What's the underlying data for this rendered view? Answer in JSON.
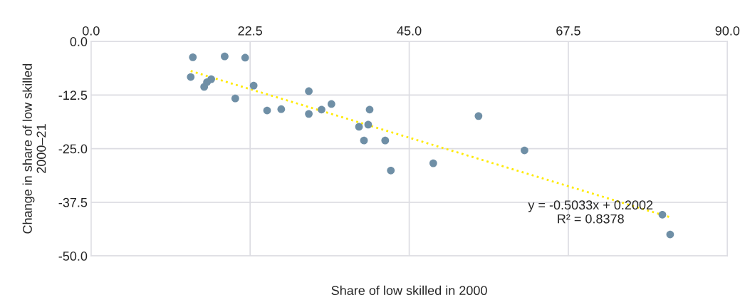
{
  "chart_data": {
    "type": "scatter",
    "xlabel": "Share of low skilled in 2000",
    "ylabel": "Change in share of low skilled\n2000–21",
    "series": [
      {
        "color": "#6f8fa6",
        "marker": "circle",
        "x": [
          14.1,
          14.4,
          16.0,
          16.4,
          17.0,
          18.9,
          20.4,
          21.8,
          23.0,
          24.9,
          26.9,
          30.8,
          30.8,
          32.6,
          34.0,
          37.9,
          38.6,
          39.2,
          39.4,
          41.6,
          42.4,
          48.4,
          54.8,
          61.3,
          80.8,
          81.9
        ],
        "values": [
          -8.3,
          -3.7,
          -10.6,
          -9.5,
          -8.8,
          -3.5,
          -13.3,
          -3.8,
          -10.3,
          -16.1,
          -15.8,
          -11.6,
          -16.9,
          -15.9,
          -14.6,
          -19.9,
          -23.1,
          -19.4,
          -15.9,
          -23.1,
          -30.1,
          -28.4,
          -17.4,
          -25.4,
          -40.4,
          -45.0
        ]
      },
      {
        "type": "line",
        "color": "#ffea00",
        "line_style": "dotted",
        "marker": "none",
        "x": [
          14.1,
          81.9
        ],
        "values": [
          -6.9,
          -41.0
        ]
      }
    ],
    "annotations": [
      "y = -0.5033x + 0.2002\nR² = 0.8378"
    ],
    "xlim": [
      0,
      90
    ],
    "xticks": [
      {
        "value": 0,
        "label": "0.0"
      },
      {
        "value": 22.5,
        "label": "22.5"
      },
      {
        "value": 45,
        "label": "45.0"
      },
      {
        "value": 67.5,
        "label": "67.5"
      },
      {
        "value": 90,
        "label": "90.0"
      }
    ],
    "ylim": [
      -50,
      0
    ],
    "yticks": [
      {
        "value": -50,
        "label": "-50.0"
      },
      {
        "value": -37.5,
        "label": "-37.5"
      },
      {
        "value": -25,
        "label": "-25.0"
      },
      {
        "value": -12.5,
        "label": "-12.5"
      },
      {
        "value": 0,
        "label": "0.0"
      }
    ],
    "grid": true
  }
}
